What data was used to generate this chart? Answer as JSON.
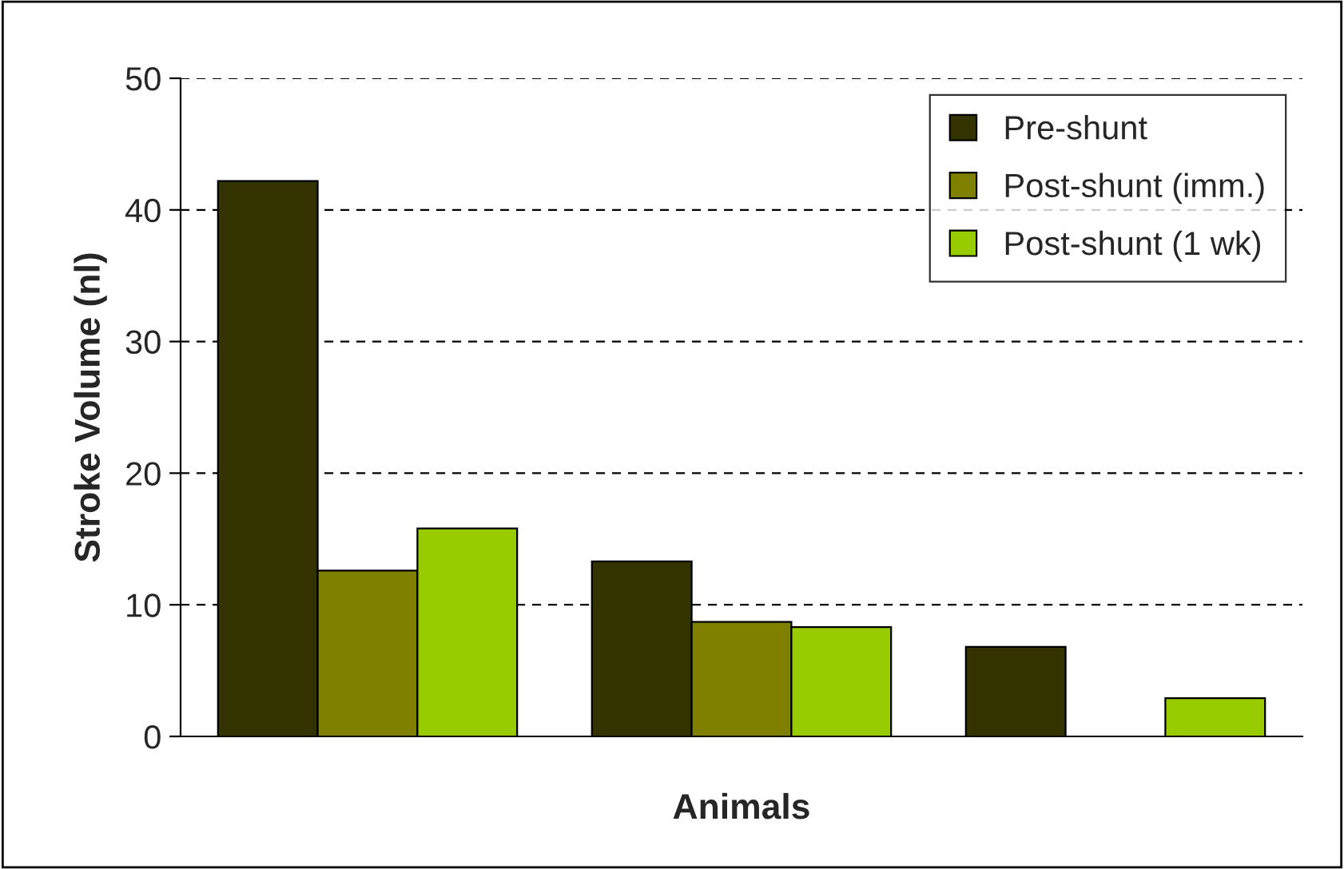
{
  "chart_data": {
    "type": "bar",
    "xlabel": "Animals",
    "ylabel": "Stroke Volume (nl)",
    "categories": [
      null,
      null,
      null
    ],
    "series": [
      {
        "name": "Pre-shunt",
        "color": "#333300",
        "values": [
          42.2,
          13.3,
          6.8
        ]
      },
      {
        "name": "Post-shunt (imm.)",
        "color": "#808000",
        "values": [
          12.6,
          8.7,
          null
        ]
      },
      {
        "name": "Post-shunt (1 wk)",
        "color": "#99cc00",
        "values": [
          15.8,
          8.3,
          2.9
        ]
      }
    ],
    "ylim": [
      0,
      50
    ],
    "yticks": [
      0,
      10,
      20,
      30,
      40,
      50
    ],
    "grid": "y",
    "legend": "top right"
  }
}
